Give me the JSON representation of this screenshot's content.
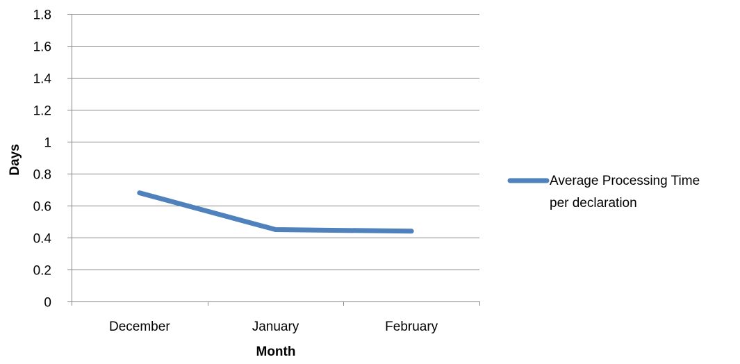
{
  "chart_data": {
    "type": "line",
    "title": "",
    "xlabel": "Month",
    "ylabel": "Days",
    "categories": [
      "December",
      "January",
      "February"
    ],
    "series": [
      {
        "name": "Average Processing Time per declaration",
        "values": [
          0.68,
          0.45,
          0.44
        ],
        "color": "#4F81BD"
      }
    ],
    "ylim": [
      0,
      1.8
    ],
    "yticks": [
      "0",
      "0.2",
      "0.4",
      "0.6",
      "0.8",
      "1",
      "1.2",
      "1.4",
      "1.6",
      "1.8"
    ],
    "grid": true,
    "legend": "right",
    "colors": {
      "grid": "#868686",
      "axis": "#868686",
      "text": "#000000"
    }
  }
}
